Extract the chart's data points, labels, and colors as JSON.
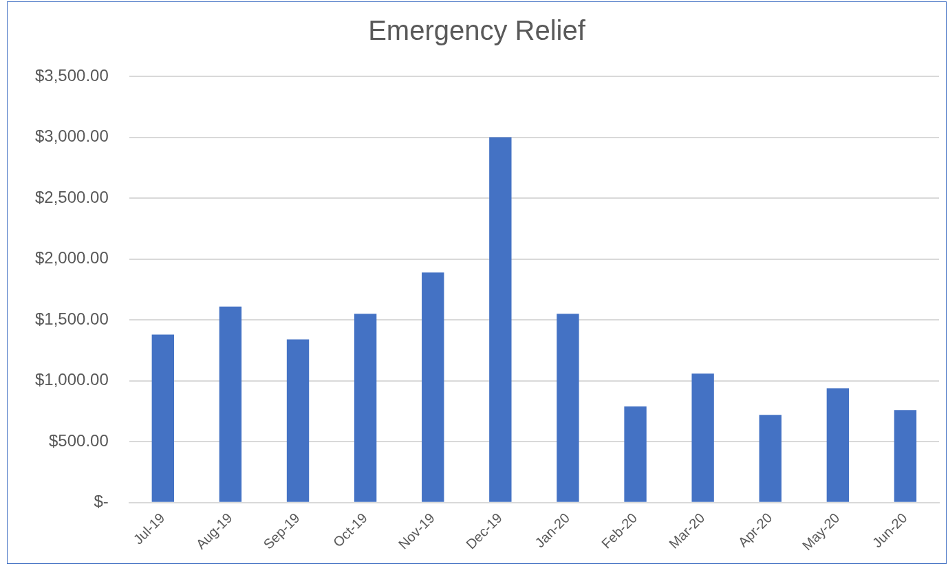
{
  "chart_data": {
    "type": "bar",
    "title": "Emergency Relief",
    "categories": [
      "Jul-19",
      "Aug-19",
      "Sep-19",
      "Oct-19",
      "Nov-19",
      "Dec-19",
      "Jan-20",
      "Feb-20",
      "Mar-20",
      "Apr-20",
      "May-20",
      "Jun-20"
    ],
    "values": [
      1380,
      1610,
      1340,
      1550,
      1890,
      3000,
      1550,
      790,
      1060,
      720,
      940,
      760
    ],
    "color": "#4472c4",
    "ylim": [
      0,
      3500
    ],
    "yticks": [
      {
        "value": 0,
        "label": "$-"
      },
      {
        "value": 500,
        "label": "$500.00"
      },
      {
        "value": 1000,
        "label": "$1,000.00"
      },
      {
        "value": 1500,
        "label": "$1,500.00"
      },
      {
        "value": 2000,
        "label": "$2,000.00"
      },
      {
        "value": 2500,
        "label": "$2,500.00"
      },
      {
        "value": 3000,
        "label": "$3,000.00"
      },
      {
        "value": 3500,
        "label": "$3,500.00"
      }
    ],
    "grid": "y"
  }
}
